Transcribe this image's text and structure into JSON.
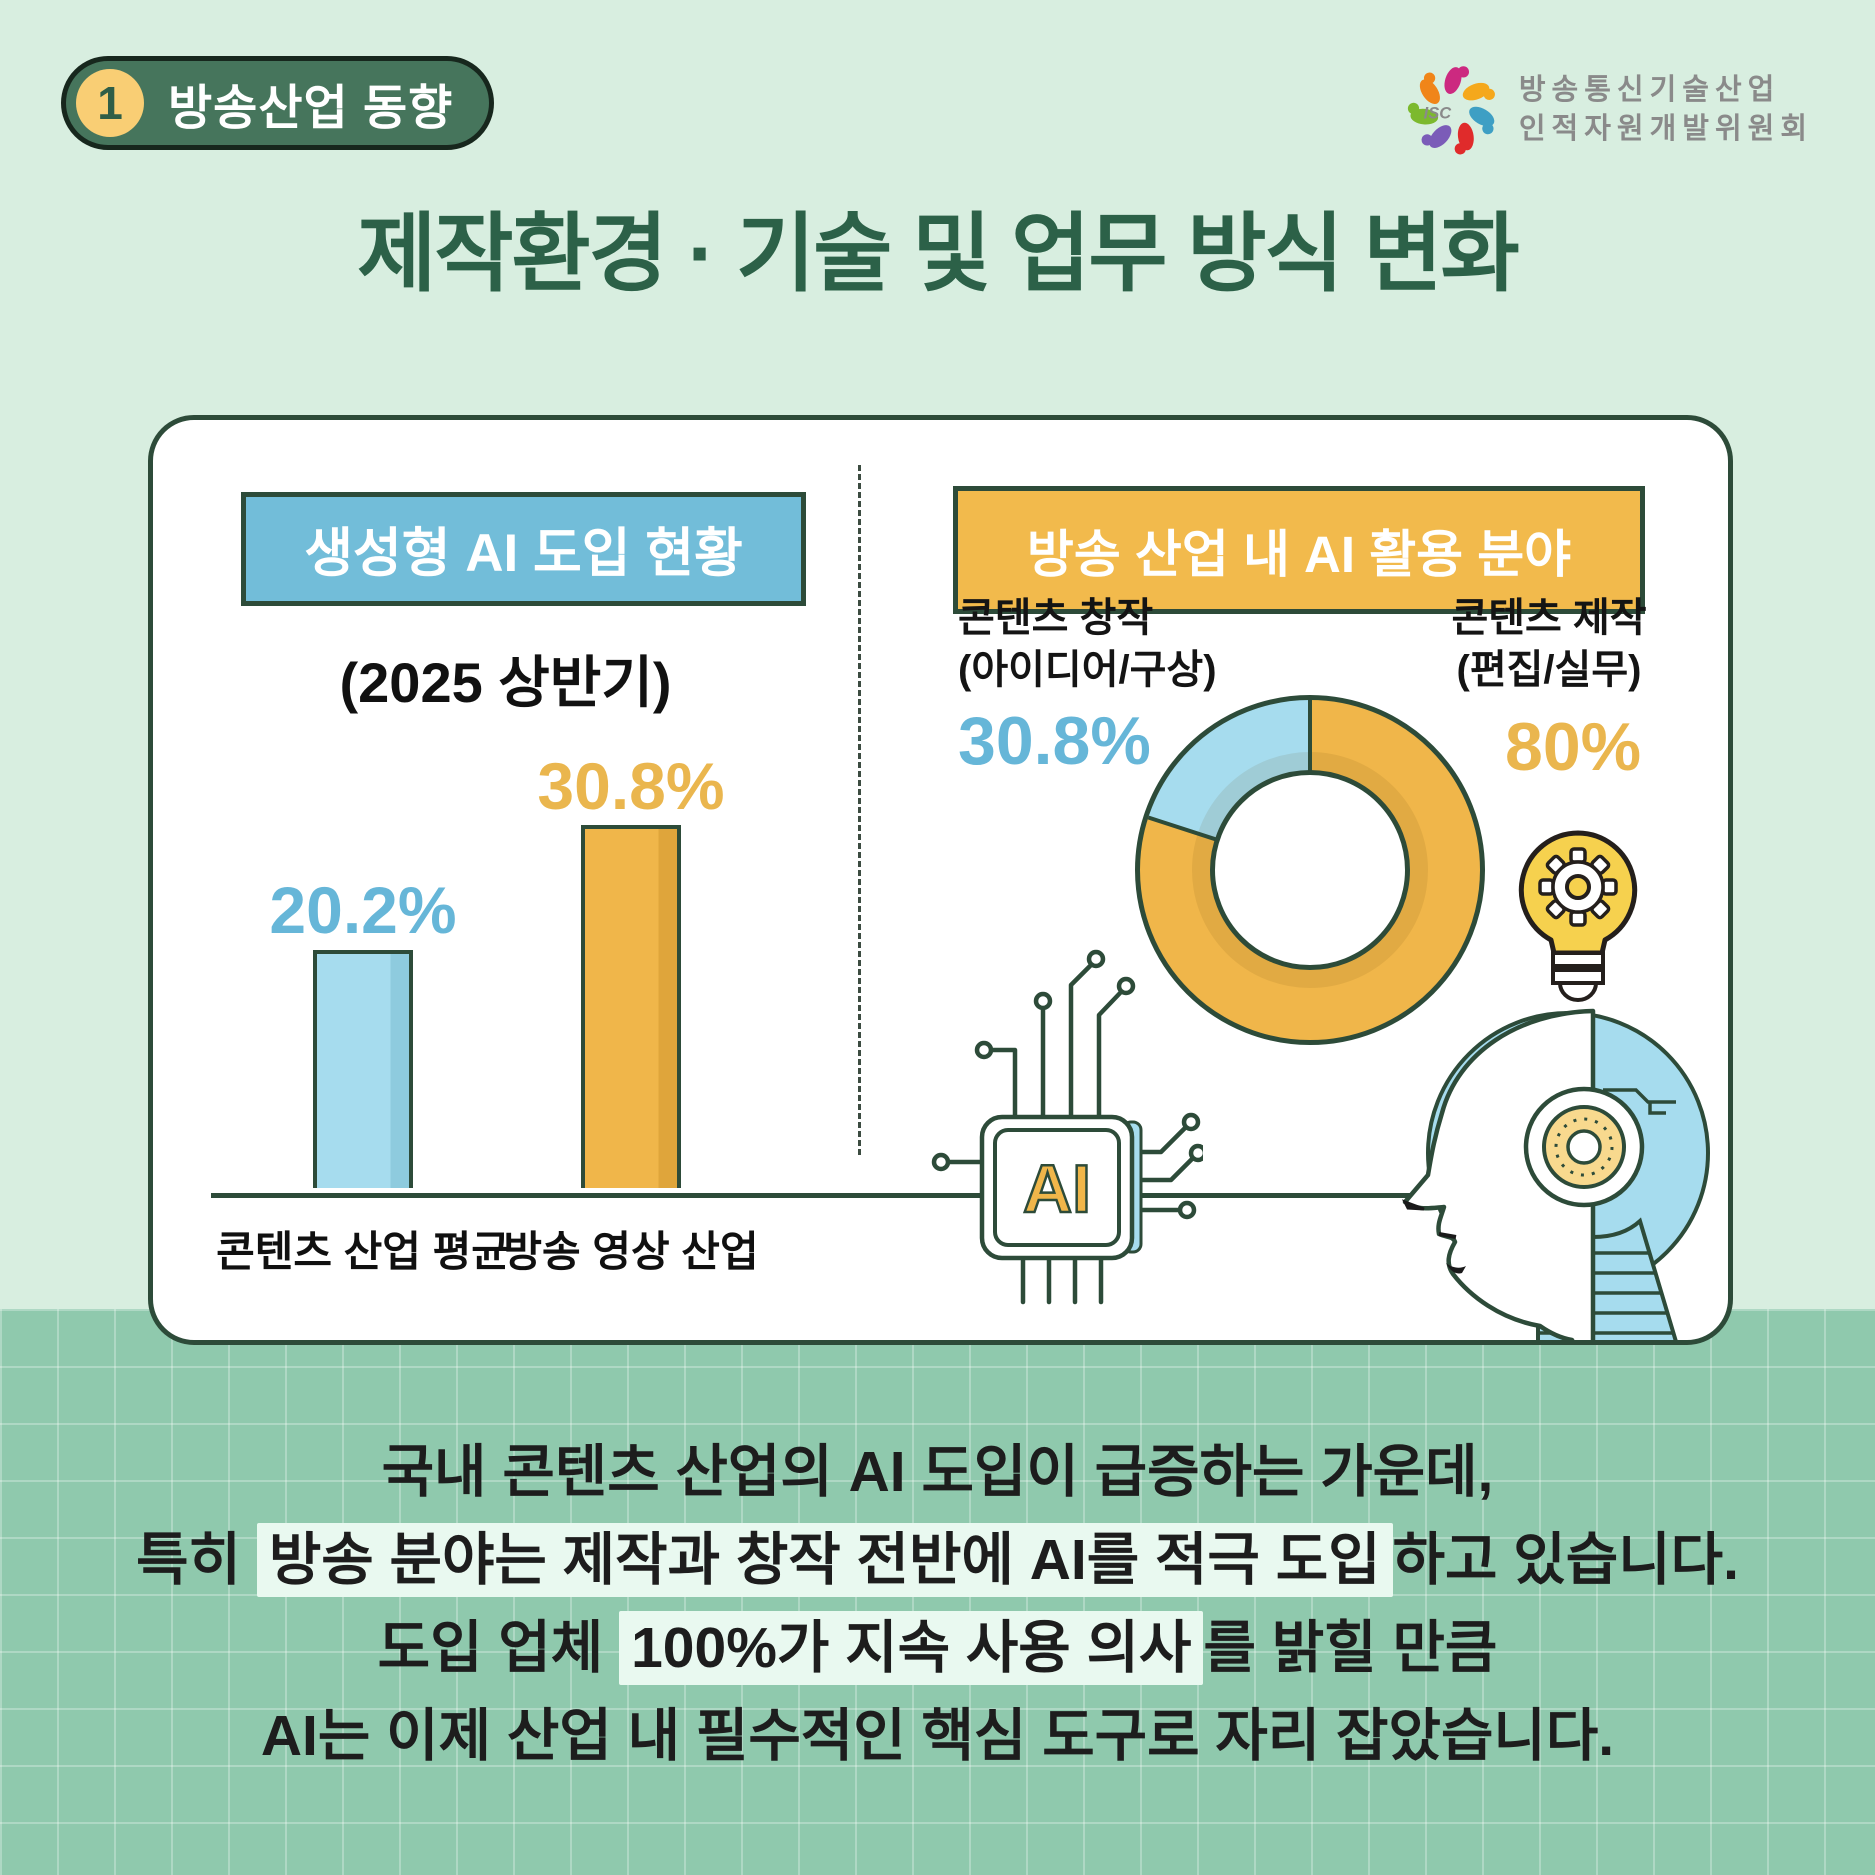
{
  "page": {
    "badge": {
      "number": "1",
      "label": "방송산업 동향"
    },
    "logo": {
      "abbr": "ISC",
      "line1": "방송통신기술산업",
      "line2": "인적자원개발위원회"
    },
    "title": "제작환경 · 기술 및 업무 방식 변화"
  },
  "chart_data": [
    {
      "type": "bar",
      "title": "생성형 AI 도입 현황",
      "subtitle": "(2025 상반기)",
      "categories": [
        "콘텐츠 산업 평균",
        "방송 영상 산업"
      ],
      "values": [
        20.2,
        30.8
      ],
      "value_labels": [
        "20.2%",
        "30.8%"
      ],
      "unit": "%",
      "ylim": [
        0,
        35
      ],
      "bar_colors": [
        "#a6dcee",
        "#f0b64a"
      ],
      "bar_shade_colors": [
        "#8ecbde",
        "#dfa53b"
      ],
      "value_label_colors": [
        "#66b6d8",
        "#eab64e"
      ]
    },
    {
      "type": "donut",
      "title": "방송 산업 내 AI 활용 분야",
      "segments": [
        {
          "label": "콘텐츠 창작",
          "sublabel": "(아이디어/구상)",
          "value": 30.8,
          "value_label": "30.8%",
          "color": "#a6dcee"
        },
        {
          "label": "콘텐츠 제작",
          "sublabel": "(편집/실무)",
          "value": 80,
          "value_label": "80%",
          "color": "#f0b64a"
        }
      ],
      "visual_split": {
        "yellow_percent": 80,
        "blue_percent": 20
      },
      "legend_position": "sides",
      "chip_label": "AI"
    }
  ],
  "footer": {
    "line1": "국내 콘텐츠 산업의 AI 도입이 급증하는 가운데,",
    "line2_prefix": "특히 ",
    "line2_highlight": "방송 분야는 제작과 창작 전반에 AI를 적극 도입",
    "line2_suffix": "하고 있습니다.",
    "line3_prefix": "도입 업체 ",
    "line3_highlight": "100%가 지속 사용 의사",
    "line3_suffix": "를 밝힐 만큼",
    "line4": "AI는 이제 산업 내 필수적인 핵심 도구로 자리 잡았습니다."
  },
  "colors": {
    "background_top": "#d8eee0",
    "background_bottom": "#8fc9ad",
    "card_border": "#2d4b39",
    "title_green": "#2c6148",
    "badge_green": "#46755c",
    "badge_number_bg": "#f9ce74",
    "header_blue": "#72bdd9",
    "header_yellow": "#f2ba4c",
    "accent_blue": "#66b6d8",
    "accent_yellow": "#eab64e",
    "outline_dark_green": "#2d4b39",
    "highlight_bg": "#e9f9f0",
    "text_dark": "#1d1d1d"
  }
}
